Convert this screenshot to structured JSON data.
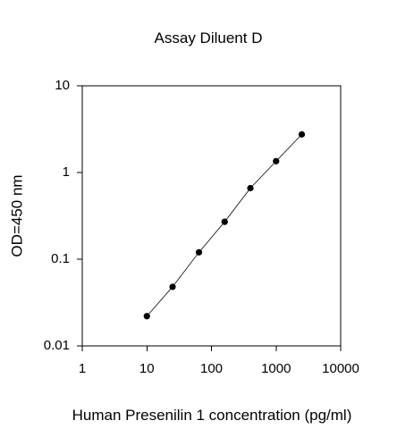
{
  "chart_data": {
    "type": "scatter",
    "title": "Assay Diluent D",
    "xlabel": "Human Presenilin 1 concentration (pg/ml)",
    "ylabel": "OD=450 nm",
    "x_scale": "log",
    "y_scale": "log",
    "xlim": [
      1,
      10000
    ],
    "ylim": [
      0.01,
      10
    ],
    "x_ticks": [
      "1",
      "10",
      "100",
      "1000",
      "10000"
    ],
    "y_ticks": [
      "0.01",
      "0.1",
      "1",
      "10"
    ],
    "grid": false,
    "legend": "none",
    "marker_color": "#000000",
    "line_color": "#000000",
    "fit_line": true,
    "series": [
      {
        "x": [
          10,
          25,
          64,
          160,
          400,
          1000,
          2500
        ],
        "y": [
          0.022,
          0.048,
          0.12,
          0.27,
          0.66,
          1.35,
          2.75
        ]
      }
    ]
  }
}
